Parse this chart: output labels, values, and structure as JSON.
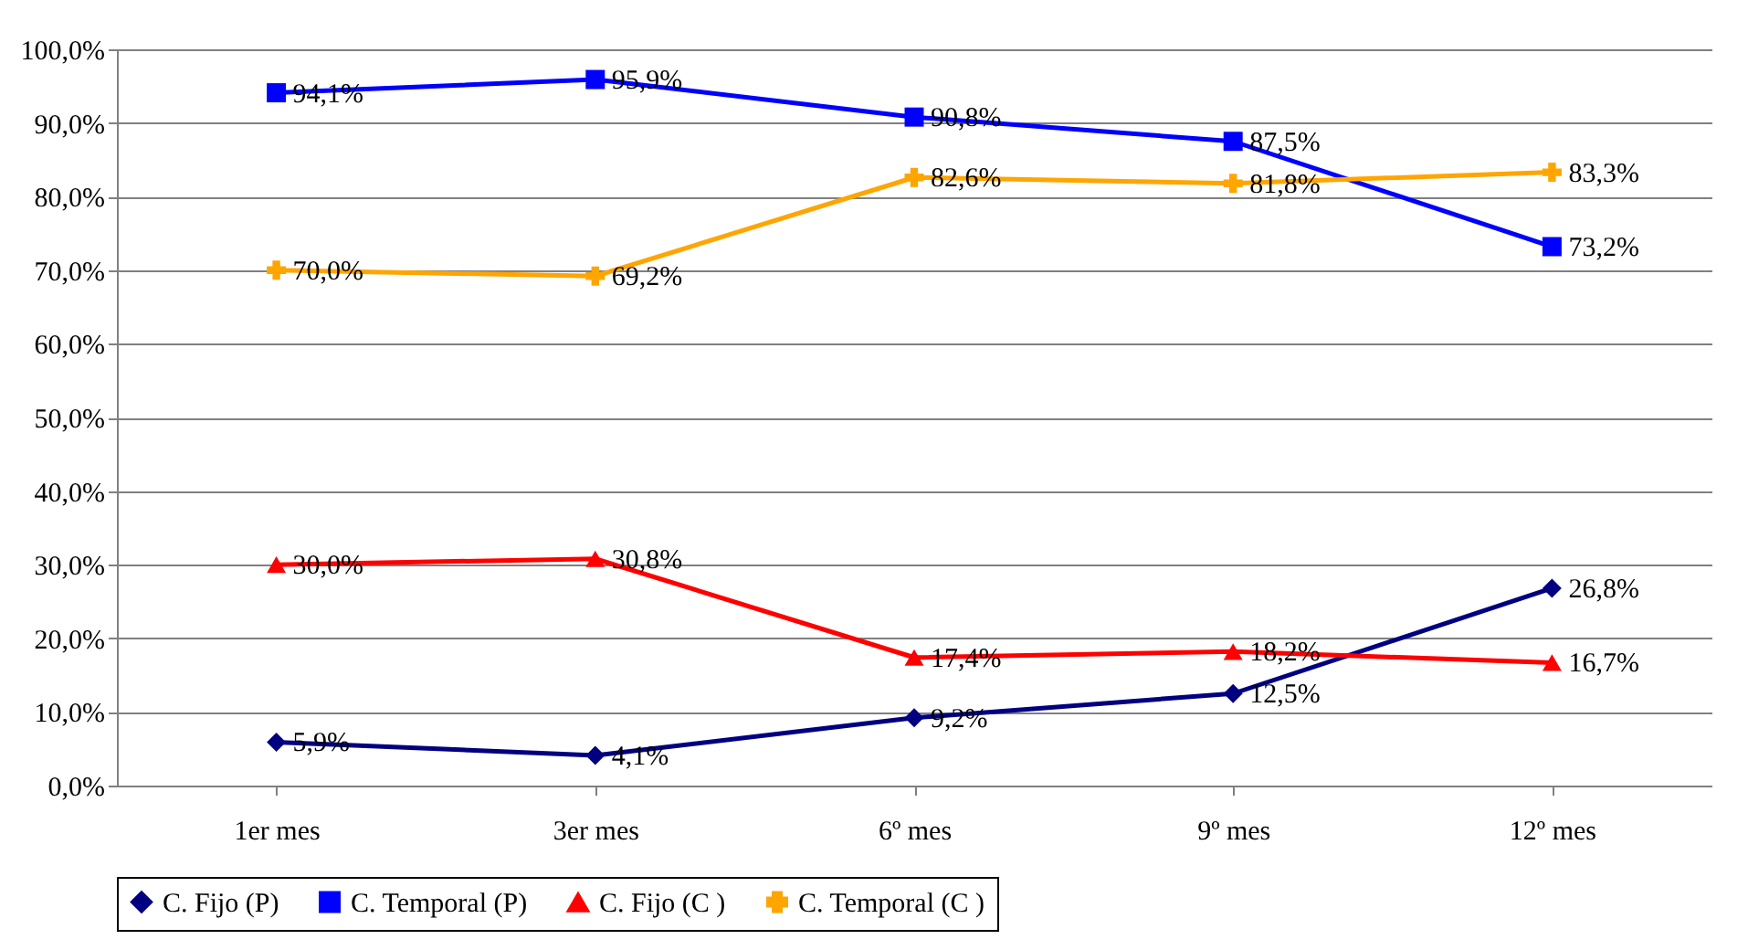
{
  "chart_data": {
    "type": "line",
    "categories": [
      "1er mes",
      "3er mes",
      "6º mes",
      "9º mes",
      "12º mes"
    ],
    "ylim": [
      0,
      100
    ],
    "yticks": [
      {
        "value": 0,
        "label": "0,0%"
      },
      {
        "value": 10,
        "label": "10,0%"
      },
      {
        "value": 20,
        "label": "20,0%"
      },
      {
        "value": 30,
        "label": "30,0%"
      },
      {
        "value": 40,
        "label": "40,0%"
      },
      {
        "value": 50,
        "label": "50,0%"
      },
      {
        "value": 60,
        "label": "60,0%"
      },
      {
        "value": 70,
        "label": "70,0%"
      },
      {
        "value": 80,
        "label": "80,0%"
      },
      {
        "value": 90,
        "label": "90,0%"
      },
      {
        "value": 100,
        "label": "100,0%"
      }
    ],
    "grid": "y",
    "legend": "bottom",
    "series": [
      {
        "name": "C. Fijo (P)",
        "color": "#000080",
        "marker": "diamond",
        "values": [
          5.9,
          4.1,
          9.2,
          12.5,
          26.8
        ],
        "value_labels": [
          "5,9%",
          "4,1%",
          "9,2%",
          "12,5%",
          "26,8%"
        ]
      },
      {
        "name": "C. Temporal (P)",
        "color": "#0000ff",
        "marker": "square",
        "values": [
          94.1,
          95.9,
          90.8,
          87.5,
          73.2
        ],
        "value_labels": [
          "94,1%",
          "95,9%",
          "90,8%",
          "87,5%",
          "73,2%"
        ]
      },
      {
        "name": "C. Fijo (C )",
        "color": "#ff0000",
        "marker": "triangle",
        "values": [
          30.0,
          30.8,
          17.4,
          18.2,
          16.7
        ],
        "value_labels": [
          "30,0%",
          "30,8%",
          "17,4%",
          "18,2%",
          "16,7%"
        ]
      },
      {
        "name": "C. Temporal (C )",
        "color": "#ffa500",
        "marker": "cross",
        "values": [
          70.0,
          69.2,
          82.6,
          81.8,
          83.3
        ],
        "value_labels": [
          "70,0%",
          "69,2%",
          "82,6%",
          "81,8%",
          "83,3%"
        ]
      }
    ]
  }
}
